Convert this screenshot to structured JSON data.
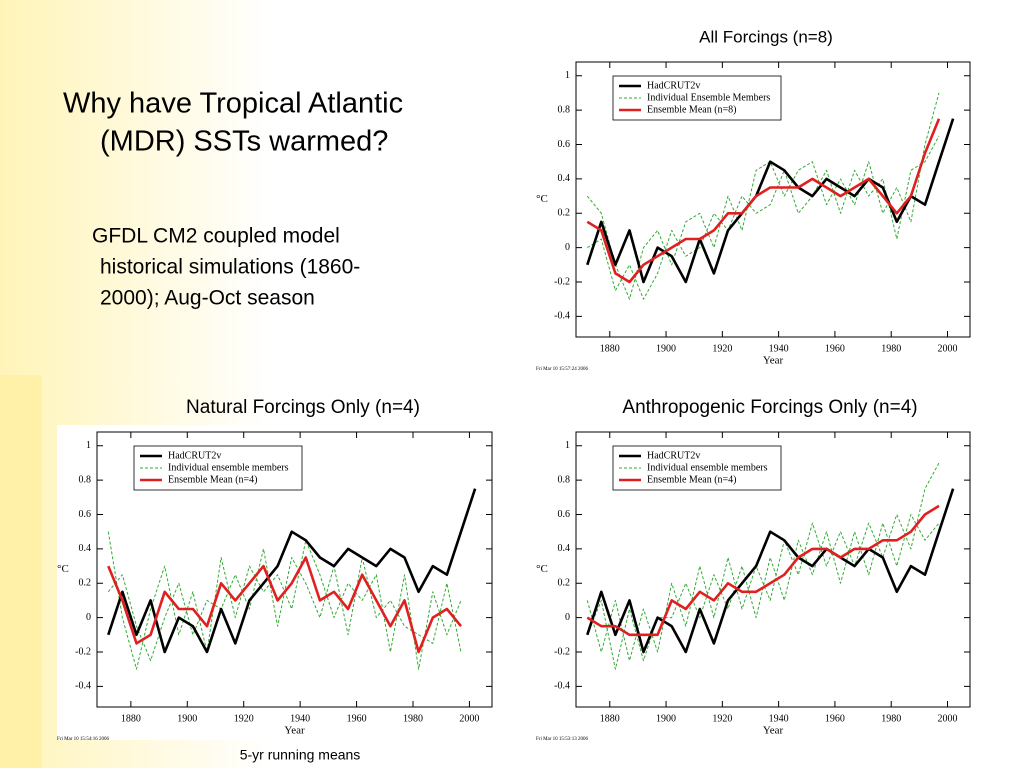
{
  "slide": {
    "title": [
      "Why have Tropical Atlantic",
      "(MDR) SSTs warmed?"
    ],
    "subtitle": [
      "GFDL CM2 coupled model",
      "historical simulations (1860-",
      "2000); Aug-Oct season"
    ],
    "footnote": "5-yr running means"
  },
  "chart_data": [
    {
      "type": "line",
      "title": "All Forcings (n=8)",
      "xlabel": "Year",
      "ylabel": "°C",
      "timestamp": "Fri Mar 10 15:57:24 2006",
      "xlim": [
        1868,
        2008
      ],
      "xticks": [
        1880,
        1900,
        1920,
        1940,
        1960,
        1980,
        2000
      ],
      "ylim": [
        -0.52,
        1.08
      ],
      "yticks": [
        -0.4,
        -0.2,
        0,
        0.2,
        0.4,
        0.6,
        0.8,
        1
      ],
      "x": [
        1872,
        1877,
        1882,
        1887,
        1892,
        1897,
        1902,
        1907,
        1912,
        1917,
        1922,
        1927,
        1932,
        1937,
        1942,
        1947,
        1952,
        1957,
        1962,
        1967,
        1972,
        1977,
        1982,
        1987,
        1992,
        1997,
        2002
      ],
      "series": [
        {
          "name": "HadCRUT2v",
          "color": "#000000",
          "values": [
            -0.1,
            0.15,
            -0.1,
            0.1,
            -0.2,
            0.0,
            -0.05,
            -0.2,
            0.05,
            -0.15,
            0.1,
            0.2,
            0.3,
            0.5,
            0.45,
            0.35,
            0.3,
            0.4,
            0.35,
            0.3,
            0.4,
            0.35,
            0.15,
            0.3,
            0.25,
            0.5,
            0.75
          ]
        },
        {
          "name": "Individual Ensemble Members",
          "color": "#33aa33",
          "dashed": true,
          "values": [
            0.3,
            0.2,
            -0.1,
            -0.3,
            0.0,
            0.1,
            -0.1,
            0.15,
            0.2,
            0.0,
            0.3,
            0.1,
            0.45,
            0.5,
            0.3,
            0.45,
            0.5,
            0.25,
            0.4,
            0.25,
            0.5,
            0.2,
            0.35,
            0.15,
            0.6,
            0.9,
            null
          ]
        },
        {
          "color": "#33aa33",
          "dashed": true,
          "values": [
            0.0,
            0.05,
            -0.25,
            -0.1,
            -0.3,
            -0.15,
            0.1,
            -0.05,
            0.0,
            0.2,
            0.1,
            0.3,
            0.2,
            0.25,
            0.45,
            0.2,
            0.3,
            0.45,
            0.2,
            0.45,
            0.3,
            0.4,
            0.05,
            0.45,
            0.5,
            0.65,
            null
          ]
        },
        {
          "name": "Ensemble Mean (n=8)",
          "color": "#e02020",
          "values": [
            0.15,
            0.1,
            -0.15,
            -0.2,
            -0.1,
            -0.05,
            0,
            0.05,
            0.05,
            0.1,
            0.2,
            0.2,
            0.3,
            0.35,
            0.35,
            0.35,
            0.4,
            0.35,
            0.3,
            0.35,
            0.4,
            0.3,
            0.2,
            0.3,
            0.55,
            0.75,
            null
          ]
        }
      ]
    },
    {
      "type": "line",
      "title": "Natural Forcings Only (n=4)",
      "xlabel": "Year",
      "ylabel": "°C",
      "timestamp": "Fri Mar 10 15:54:16 2006",
      "xlim": [
        1868,
        2008
      ],
      "xticks": [
        1880,
        1900,
        1920,
        1940,
        1960,
        1980,
        2000
      ],
      "ylim": [
        -0.52,
        1.08
      ],
      "yticks": [
        -0.4,
        -0.2,
        0,
        0.2,
        0.4,
        0.6,
        0.8,
        1
      ],
      "x": [
        1872,
        1877,
        1882,
        1887,
        1892,
        1897,
        1902,
        1907,
        1912,
        1917,
        1922,
        1927,
        1932,
        1937,
        1942,
        1947,
        1952,
        1957,
        1962,
        1967,
        1972,
        1977,
        1982,
        1987,
        1992,
        1997,
        2002
      ],
      "series": [
        {
          "name": "HadCRUT2v",
          "color": "#000000",
          "values": [
            -0.1,
            0.15,
            -0.1,
            0.1,
            -0.2,
            0.0,
            -0.05,
            -0.2,
            0.05,
            -0.15,
            0.1,
            0.2,
            0.3,
            0.5,
            0.45,
            0.35,
            0.3,
            0.4,
            0.35,
            0.3,
            0.4,
            0.35,
            0.15,
            0.3,
            0.25,
            0.5,
            0.75
          ]
        },
        {
          "name": "Individual ensemble members",
          "color": "#33aa33",
          "dashed": true,
          "values": [
            0.5,
            0.0,
            -0.3,
            0.05,
            0.3,
            -0.1,
            0.15,
            -0.2,
            0.35,
            0.0,
            0.3,
            0.15,
            0.25,
            0.05,
            0.45,
            0.25,
            0.0,
            0.2,
            0.1,
            0.25,
            -0.2,
            0.25,
            -0.3,
            0.15,
            -0.1,
            0.1,
            null
          ]
        },
        {
          "color": "#33aa33",
          "dashed": true,
          "values": [
            0.15,
            0.25,
            -0.05,
            -0.25,
            0.0,
            0.2,
            -0.1,
            0.1,
            0.05,
            0.25,
            0.05,
            0.4,
            -0.05,
            0.35,
            0.2,
            0.0,
            0.3,
            -0.1,
            0.35,
            0.0,
            0.1,
            -0.05,
            -0.1,
            -0.15,
            0.2,
            -0.2,
            null
          ]
        },
        {
          "name": "Ensemble Mean (n=4)",
          "color": "#e02020",
          "values": [
            0.3,
            0.1,
            -0.15,
            -0.1,
            0.15,
            0.05,
            0.05,
            -0.05,
            0.2,
            0.1,
            0.2,
            0.3,
            0.1,
            0.2,
            0.35,
            0.1,
            0.15,
            0.05,
            0.25,
            0.1,
            -0.05,
            0.1,
            -0.2,
            0.0,
            0.05,
            -0.05,
            null
          ]
        }
      ]
    },
    {
      "type": "line",
      "title": "Anthropogenic Forcings Only (n=4)",
      "xlabel": "Year",
      "ylabel": "°C",
      "timestamp": "Fri Mar 10 15:53:13 2006",
      "xlim": [
        1868,
        2008
      ],
      "xticks": [
        1880,
        1900,
        1920,
        1940,
        1960,
        1980,
        2000
      ],
      "ylim": [
        -0.52,
        1.08
      ],
      "yticks": [
        -0.4,
        -0.2,
        0,
        0.2,
        0.4,
        0.6,
        0.8,
        1
      ],
      "x": [
        1872,
        1877,
        1882,
        1887,
        1892,
        1897,
        1902,
        1907,
        1912,
        1917,
        1922,
        1927,
        1932,
        1937,
        1942,
        1947,
        1952,
        1957,
        1962,
        1967,
        1972,
        1977,
        1982,
        1987,
        1992,
        1997,
        2002
      ],
      "series": [
        {
          "name": "HadCRUT2v",
          "color": "#000000",
          "values": [
            -0.1,
            0.15,
            -0.1,
            0.1,
            -0.2,
            0.0,
            -0.05,
            -0.2,
            0.05,
            -0.15,
            0.1,
            0.2,
            0.3,
            0.5,
            0.45,
            0.35,
            0.3,
            0.4,
            0.35,
            0.3,
            0.4,
            0.35,
            0.15,
            0.3,
            0.25,
            0.5,
            0.75
          ]
        },
        {
          "name": "Individual ensemble members",
          "color": "#33aa33",
          "dashed": true,
          "values": [
            0.1,
            -0.2,
            0.1,
            -0.25,
            0.05,
            -0.2,
            0.2,
            -0.05,
            0.3,
            0.0,
            0.35,
            0.05,
            0.3,
            0.1,
            0.45,
            0.25,
            0.55,
            0.3,
            0.5,
            0.3,
            0.55,
            0.35,
            0.6,
            0.4,
            0.75,
            0.9,
            null
          ]
        },
        {
          "color": "#33aa33",
          "dashed": true,
          "values": [
            -0.1,
            0.1,
            -0.3,
            0.05,
            -0.25,
            0.0,
            0.0,
            0.2,
            0.0,
            0.25,
            0.05,
            0.3,
            0.0,
            0.35,
            0.1,
            0.45,
            0.25,
            0.5,
            0.2,
            0.5,
            0.25,
            0.55,
            0.3,
            0.6,
            0.45,
            0.55,
            null
          ]
        },
        {
          "name": "Ensemble Mean (n=4)",
          "color": "#e02020",
          "values": [
            0,
            -0.05,
            -0.05,
            -0.1,
            -0.1,
            -0.1,
            0.1,
            0.05,
            0.15,
            0.1,
            0.2,
            0.15,
            0.15,
            0.2,
            0.25,
            0.35,
            0.4,
            0.4,
            0.35,
            0.4,
            0.4,
            0.45,
            0.45,
            0.5,
            0.6,
            0.65,
            null
          ]
        }
      ]
    }
  ]
}
